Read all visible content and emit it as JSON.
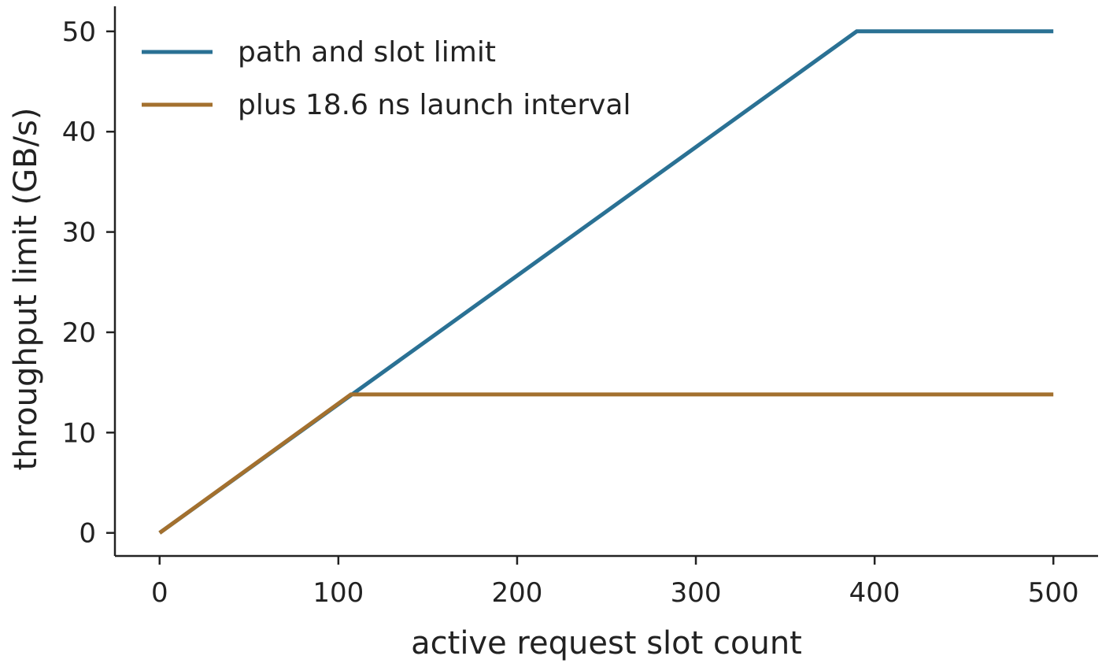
{
  "chart_data": {
    "type": "line",
    "title": "",
    "xlabel": "active request slot count",
    "ylabel": "throughput limit (GB/s)",
    "xlim": [
      -25,
      525
    ],
    "ylim": [
      -2.3,
      52.5
    ],
    "xticks": [
      0,
      100,
      200,
      300,
      400,
      500
    ],
    "yticks": [
      0,
      10,
      20,
      30,
      40,
      50
    ],
    "grid": false,
    "legend_position": "top-left",
    "series": [
      {
        "name": "path and slot limit",
        "color": "#2a7194",
        "x": [
          0,
          390,
          500
        ],
        "y": [
          0,
          50,
          50
        ]
      },
      {
        "name": "plus 18.6 ns launch interval",
        "color": "#a3702e",
        "x": [
          0,
          107,
          500
        ],
        "y": [
          0,
          13.8,
          13.8
        ]
      }
    ]
  }
}
